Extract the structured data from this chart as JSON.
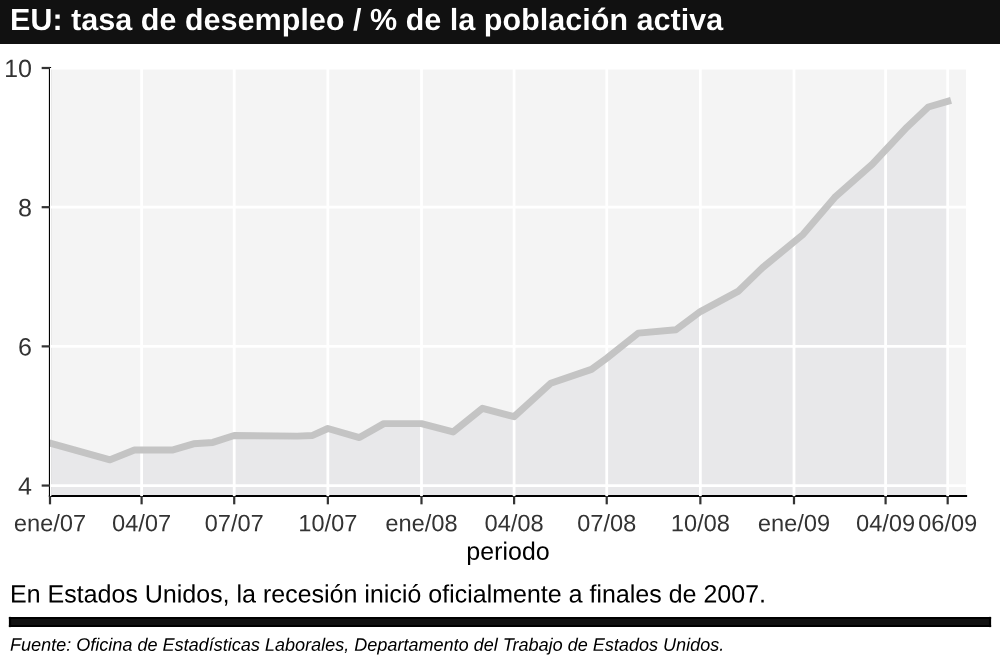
{
  "chart_data": {
    "type": "area",
    "title": "EU: tasa de desempleo / % de la población activa",
    "xlabel": "periodo",
    "x": [
      "2007-01-01",
      "2007-03-01",
      "2007-03-25",
      "2007-05-01",
      "2007-05-22",
      "2007-06-10",
      "2007-07-01",
      "2007-09-01",
      "2007-09-16",
      "2007-10-01",
      "2007-11-01",
      "2007-11-25",
      "2008-01-01",
      "2008-02-01",
      "2008-03-01",
      "2008-04-01",
      "2008-05-07",
      "2008-06-16",
      "2008-07-01",
      "2008-08-01",
      "2008-09-07",
      "2008-10-01",
      "2008-11-07",
      "2008-12-01",
      "2009-01-10",
      "2009-02-10",
      "2009-03-19",
      "2009-04-22",
      "2009-05-13",
      "2009-06-01"
    ],
    "series": [
      {
        "color": "#c4c4c4",
        "values": [
          4.61,
          4.37,
          4.51,
          4.51,
          4.6,
          4.62,
          4.72,
          4.71,
          4.72,
          4.82,
          4.69,
          4.89,
          4.89,
          4.77,
          5.11,
          4.99,
          5.47,
          5.67,
          5.83,
          6.19,
          6.24,
          6.5,
          6.79,
          7.13,
          7.61,
          8.14,
          8.62,
          9.15,
          9.44,
          9.52
        ]
      }
    ],
    "xlim": [
      "2007-01-01",
      "2009-06-19"
    ],
    "xticks": [
      {
        "value": "2007-01",
        "label": "ene/07"
      },
      {
        "value": "2007-04",
        "label": "04/07"
      },
      {
        "value": "2007-07",
        "label": "07/07"
      },
      {
        "value": "2007-10",
        "label": "10/07"
      },
      {
        "value": "2008-01",
        "label": "ene/08"
      },
      {
        "value": "2008-04",
        "label": "04/08"
      },
      {
        "value": "2008-07",
        "label": "07/08"
      },
      {
        "value": "2008-10",
        "label": "10/08"
      },
      {
        "value": "2009-01",
        "label": "ene/09"
      },
      {
        "value": "2009-04",
        "label": "04/09"
      },
      {
        "value": "2009-06",
        "label": "06/09"
      }
    ],
    "ylim": [
      3.85,
      10
    ],
    "yticks": [
      4,
      6,
      8,
      10
    ],
    "grid": true,
    "annotations": [
      "En Estados Unidos, la recesión inició oficialmente a finales de 2007.",
      "Fuente: Oficina de Estadísticas Laborales, Departamento del Trabajo de Estados Unidos."
    ]
  }
}
